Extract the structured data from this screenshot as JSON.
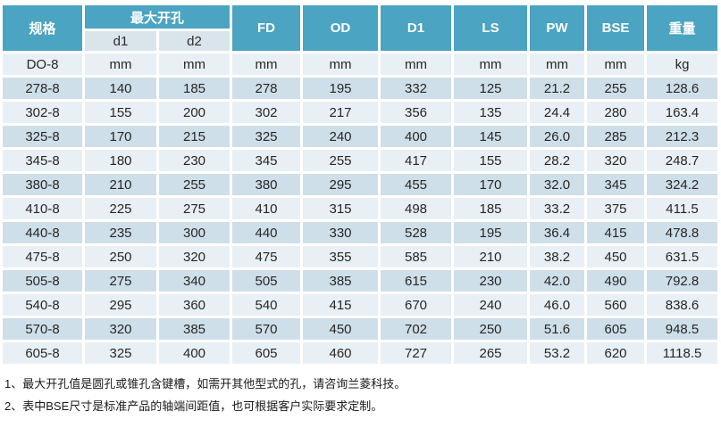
{
  "table": {
    "header": {
      "spec": "规格",
      "max_opening": "最大开孔",
      "d1": "d1",
      "d2": "d2",
      "cols": [
        "FD",
        "OD",
        "D1",
        "LS",
        "PW",
        "BSE",
        "重量"
      ]
    },
    "units_row": [
      "DO-8",
      "mm",
      "mm",
      "mm",
      "mm",
      "mm",
      "mm",
      "mm",
      "mm",
      "kg"
    ],
    "rows": [
      [
        "278-8",
        "140",
        "185",
        "278",
        "195",
        "332",
        "125",
        "21.2",
        "255",
        "128.6"
      ],
      [
        "302-8",
        "155",
        "200",
        "302",
        "217",
        "356",
        "135",
        "24.4",
        "280",
        "163.4"
      ],
      [
        "325-8",
        "170",
        "215",
        "325",
        "240",
        "400",
        "145",
        "26.0",
        "285",
        "212.3"
      ],
      [
        "345-8",
        "180",
        "230",
        "345",
        "255",
        "417",
        "155",
        "28.2",
        "320",
        "248.7"
      ],
      [
        "380-8",
        "210",
        "255",
        "380",
        "295",
        "455",
        "170",
        "32.0",
        "345",
        "324.2"
      ],
      [
        "410-8",
        "225",
        "275",
        "410",
        "315",
        "498",
        "185",
        "33.2",
        "375",
        "411.5"
      ],
      [
        "440-8",
        "235",
        "300",
        "440",
        "330",
        "528",
        "195",
        "36.4",
        "415",
        "478.8"
      ],
      [
        "475-8",
        "250",
        "320",
        "475",
        "355",
        "585",
        "210",
        "38.2",
        "450",
        "631.5"
      ],
      [
        "505-8",
        "275",
        "340",
        "505",
        "385",
        "615",
        "230",
        "42.0",
        "490",
        "792.8"
      ],
      [
        "540-8",
        "295",
        "360",
        "540",
        "415",
        "670",
        "240",
        "46.0",
        "560",
        "838.6"
      ],
      [
        "570-8",
        "320",
        "385",
        "570",
        "450",
        "702",
        "250",
        "51.6",
        "605",
        "948.5"
      ],
      [
        "605-8",
        "325",
        "400",
        "605",
        "460",
        "727",
        "265",
        "53.2",
        "620",
        "1118.5"
      ]
    ]
  },
  "notes": [
    "1、最大开孔值是圆孔或锥孔含键槽，如需开其他型式的孔，请咨询兰菱科技。",
    "2、表中BSE尺寸是标准产品的轴端间距值，也可根据客户实际要求定制。"
  ],
  "colors": {
    "header_teal": "#4aa4c2",
    "subheader_bg": "#d9e4eb",
    "row_light": "#e9f0f5",
    "row_dark": "#cfdfe9",
    "text_dark": "#262626",
    "header_text": "#ffffff"
  }
}
